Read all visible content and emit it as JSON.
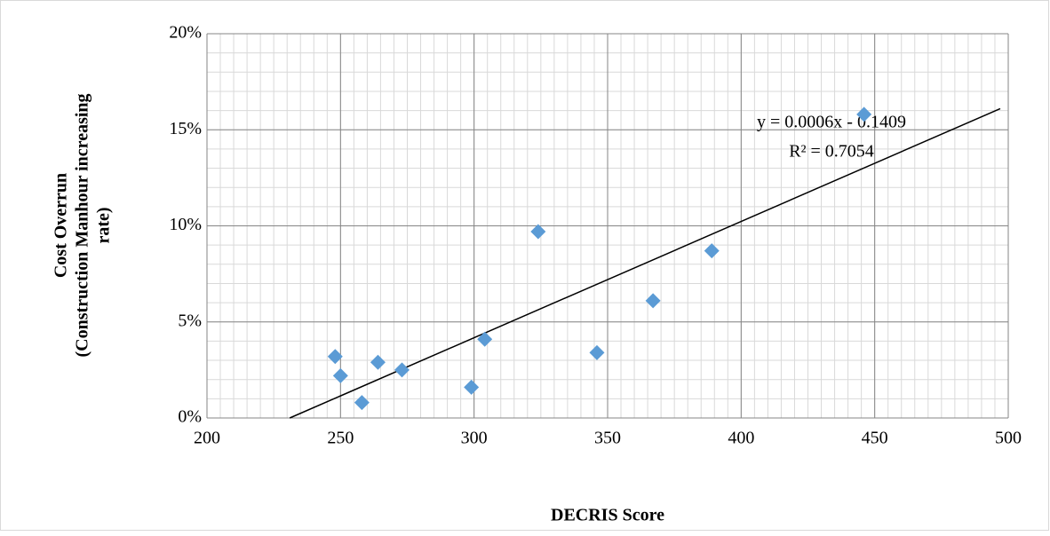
{
  "chart_data": {
    "type": "scatter",
    "xlabel": "DECRIS Score",
    "ylabel": [
      "Cost Overrun",
      "(Construction Manhour increasing",
      "rate)"
    ],
    "x": [
      248,
      250,
      258,
      264,
      273,
      299,
      304,
      324,
      346,
      367,
      389,
      446
    ],
    "series": [
      {
        "name": "Cost Overrun",
        "color": "#5b9bd5",
        "values": [
          0.032,
          0.022,
          0.008,
          0.029,
          0.025,
          0.016,
          0.041,
          0.097,
          0.034,
          0.061,
          0.087,
          0.158
        ]
      }
    ],
    "trendline": {
      "color": "#000000",
      "x": [
        231,
        497
      ],
      "values": [
        0,
        0.161
      ],
      "equation": "y = 0.0006x - 0.1409",
      "r_squared": "R² = 0.7054"
    },
    "xlim": [
      200,
      500
    ],
    "xticks": [
      200,
      250,
      300,
      350,
      400,
      450,
      500
    ],
    "ylim": [
      0,
      0.2
    ],
    "yticks": [
      {
        "value": 0,
        "label": "0%"
      },
      {
        "value": 0.05,
        "label": "5%"
      },
      {
        "value": 0.1,
        "label": "10%"
      },
      {
        "value": 0.15,
        "label": "15%"
      },
      {
        "value": 0.2,
        "label": "20%"
      }
    ],
    "grid": true,
    "minor_grid": {
      "x": 5,
      "y": 0.01
    }
  }
}
